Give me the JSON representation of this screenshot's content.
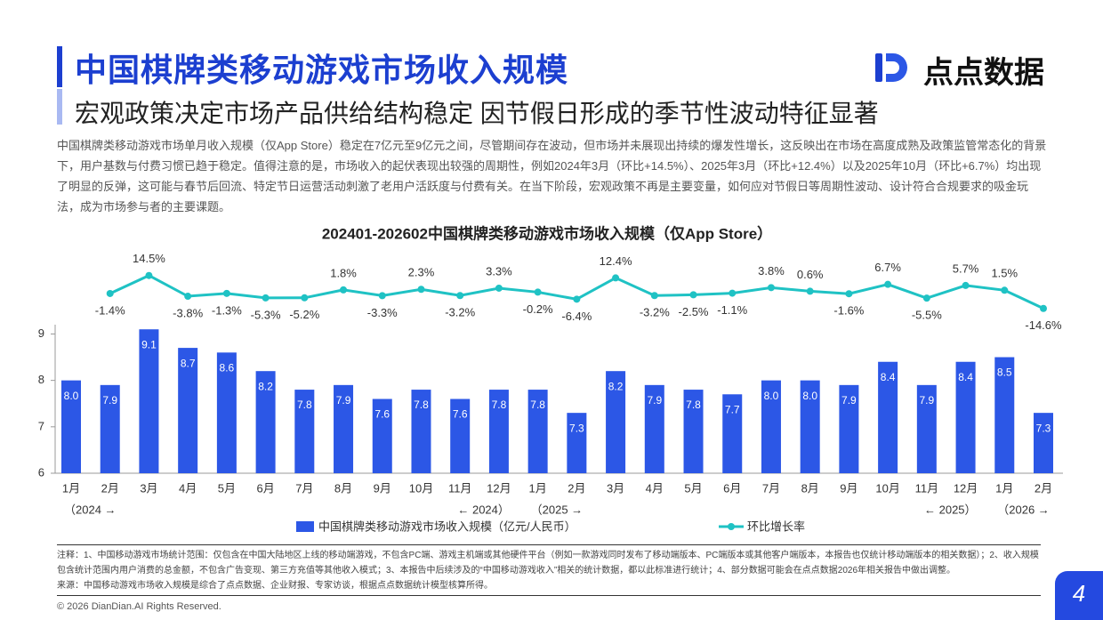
{
  "header": {
    "title": "中国棋牌类移动游戏市场收入规模",
    "subtitle": "宏观政策决定市场产品供给结构稳定 因节假日形成的季节性波动特征显著",
    "logo": "点点数据"
  },
  "description": "中国棋牌类移动游戏市场单月收入规模（仅App Store）稳定在7亿元至9亿元之间，尽管期间存在波动，但市场并未展现出持续的爆发性增长，这反映出在市场在高度成熟及政策监管常态化的背景下，用户基数与付费习惯已趋于稳定。值得注意的是，市场收入的起伏表现出较强的周期性，例如2024年3月（环比+14.5%）、2025年3月（环比+12.4%）以及2025年10月（环比+6.7%）均出现了明显的反弹，这可能与春节后回流、特定节日运营活动刺激了老用户活跃度与付费有关。在当下阶段，宏观政策不再是主要变量，如何应对节假日等周期性波动、设计符合合规要求的吸金玩法，成为市场参与者的主要课题。",
  "chart_data": {
    "type": "bar",
    "title": "202401-202602中国棋牌类移动游戏市场收入规模（仅App Store）",
    "categories": [
      "1月",
      "2月",
      "3月",
      "4月",
      "5月",
      "6月",
      "7月",
      "8月",
      "9月",
      "10月",
      "11月",
      "12月",
      "1月",
      "2月",
      "3月",
      "4月",
      "5月",
      "6月",
      "7月",
      "8月",
      "9月",
      "10月",
      "11月",
      "12月",
      "1月",
      "2月"
    ],
    "period_labels": [
      "（2024 →",
      null,
      null,
      null,
      null,
      null,
      null,
      null,
      null,
      null,
      null,
      "← 2024）",
      "（2025 →",
      null,
      null,
      null,
      null,
      null,
      null,
      null,
      null,
      null,
      null,
      "← 2025）",
      "（2026 →",
      null
    ],
    "series": [
      {
        "name": "中国棋牌类移动游戏市场收入规模（亿元/人民币）",
        "type": "bar",
        "color": "#2c57e6",
        "values": [
          8.0,
          7.9,
          9.1,
          8.7,
          8.6,
          8.2,
          7.8,
          7.9,
          7.6,
          7.8,
          7.6,
          7.8,
          7.8,
          7.3,
          8.2,
          7.9,
          7.8,
          7.7,
          8.0,
          8.0,
          7.9,
          8.4,
          7.9,
          8.4,
          8.5,
          7.3
        ],
        "value_labels": [
          "8.0",
          "7.9",
          "9.1",
          "8.7",
          "8.6",
          "8.2",
          "7.8",
          "7.9",
          "7.6",
          "7.8",
          "7.6",
          "7.8",
          "7.8",
          "7.3",
          "8.2",
          "7.9",
          "7.8",
          "7.7",
          "8.0",
          "8.0",
          "7.9",
          "8.4",
          "7.9",
          "8.4",
          "8.5",
          "7.3"
        ]
      },
      {
        "name": "环比增长率",
        "type": "line",
        "axis": "y2",
        "color": "#1fc2c4",
        "values": [
          null,
          -1.4,
          14.5,
          -3.8,
          -1.3,
          -5.3,
          -5.2,
          1.8,
          -3.3,
          2.3,
          -3.2,
          3.3,
          -0.2,
          -6.4,
          12.4,
          -3.2,
          -2.5,
          -1.1,
          3.8,
          0.6,
          -1.6,
          6.7,
          -5.5,
          5.7,
          1.5,
          -14.6
        ],
        "value_labels": [
          null,
          "-1.4%",
          "14.5%",
          "-3.8%",
          "-1.3%",
          "-5.3%",
          "-5.2%",
          "1.8%",
          "-3.3%",
          "2.3%",
          "-3.2%",
          "3.3%",
          "-0.2%",
          "-6.4%",
          "12.4%",
          "-3.2%",
          "-2.5%",
          "-1.1%",
          "3.8%",
          "0.6%",
          "-1.6%",
          "6.7%",
          "-5.5%",
          "5.7%",
          "1.5%",
          "-14.6%"
        ]
      }
    ],
    "ylim": [
      6,
      9.2
    ],
    "yticks": [
      6,
      7,
      8,
      9
    ],
    "y2lim": [
      -25,
      30
    ]
  },
  "notes": {
    "note": "注释：1、中国移动游戏市场统计范围：仅包含在中国大陆地区上线的移动端游戏，不包含PC端、游戏主机端或其他硬件平台（例如一款游戏同时发布了移动端版本、PC端版本或其他客户端版本，本报告也仅统计移动端版本的相关数据）；2、收入规模包含统计范围内用户消费的总金额，不包含广告变现、第三方充值等其他收入模式；3、本报告中后续涉及的“中国移动游戏收入”相关的统计数据，都以此标准进行统计；4、部分数据可能会在点点数据2026年相关报告中做出调整。",
    "source": "来源：中国移动游戏市场收入规模是综合了点点数据、企业财报、专家访谈，根据点点数据统计模型核算所得。"
  },
  "footer": {
    "copyright": "© 2026 DianDian.AI Rights Reserved.",
    "page": "4"
  }
}
